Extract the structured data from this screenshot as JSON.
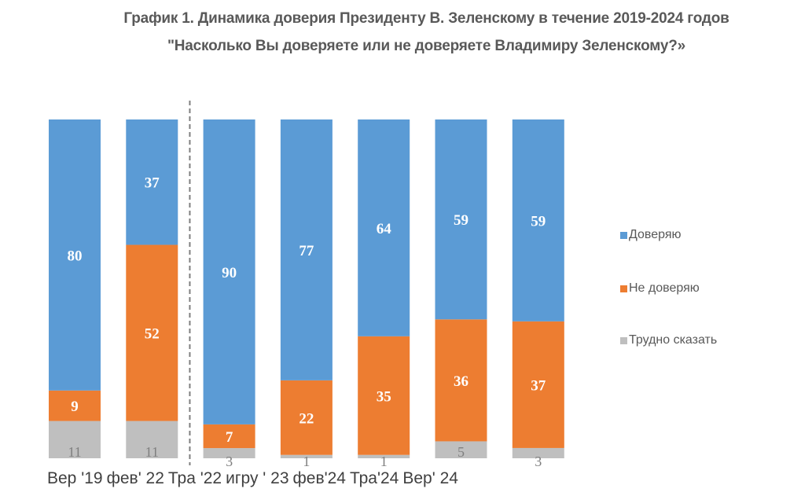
{
  "chart_data": {
    "type": "bar",
    "stacked": true,
    "title": "График 1. Динамика доверия Президенту В. Зеленскому в течение 2019-2024 годов",
    "subtitle": "\"Насколько Вы доверяете или не доверяете Владимиру Зеленскому?»",
    "categories": [
      "Вер '19",
      "фев' 22",
      "Тра '22",
      "игру ' 23",
      "фев'24",
      "Тра'24",
      "Вер' 24"
    ],
    "series": [
      {
        "name": "Доверяю",
        "color": "#5B9BD5",
        "values": [
          80,
          37,
          90,
          77,
          64,
          59,
          59
        ]
      },
      {
        "name": "Не доверяю",
        "color": "#ED7D31",
        "values": [
          9,
          52,
          7,
          22,
          35,
          36,
          37
        ]
      },
      {
        "name": "Трудно сказать",
        "color": "#BFBFBF",
        "values": [
          11,
          11,
          3,
          1,
          1,
          5,
          3
        ]
      }
    ],
    "ylim": [
      0,
      100
    ],
    "grid": false,
    "legend_position": "right",
    "divider_after_category": 1
  }
}
